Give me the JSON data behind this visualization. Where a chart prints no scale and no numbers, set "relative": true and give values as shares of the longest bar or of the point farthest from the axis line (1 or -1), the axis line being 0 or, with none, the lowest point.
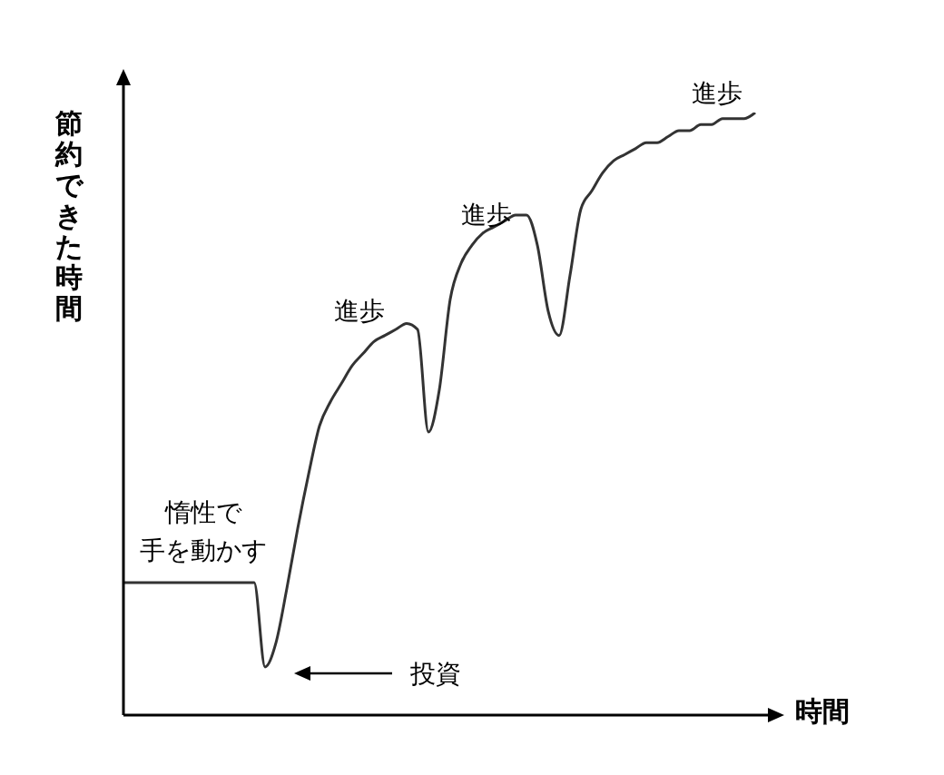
{
  "chart_data": {
    "type": "line",
    "xlabel": "時間",
    "ylabel": "節約できた時間",
    "relative": true,
    "color": "#333333",
    "categories": [
      null,
      null,
      null,
      null,
      null,
      null,
      null,
      null,
      null,
      null,
      null,
      null,
      null,
      null,
      null,
      null,
      null,
      null,
      null,
      null,
      null,
      null,
      null,
      null,
      null,
      null,
      null,
      null,
      null,
      null,
      null,
      null,
      null,
      null,
      null,
      null,
      null,
      null,
      null,
      null,
      null,
      null,
      null,
      null,
      null,
      null,
      null,
      null,
      null,
      null,
      null,
      null,
      null,
      null,
      null,
      null,
      null,
      null,
      null
    ],
    "values": [
      0.22,
      0.22,
      0.22,
      0.22,
      0.22,
      0.22,
      0.22,
      0.22,
      0.22,
      0.22,
      0.22,
      0.22,
      0.22,
      0.08,
      0.12,
      0.21,
      0.31,
      0.4,
      0.48,
      0.52,
      0.55,
      0.58,
      0.6,
      0.62,
      0.63,
      0.64,
      0.65,
      0.64,
      0.47,
      0.54,
      0.69,
      0.75,
      0.78,
      0.8,
      0.81,
      0.82,
      0.83,
      0.83,
      0.78,
      0.67,
      0.63,
      0.73,
      0.84,
      0.87,
      0.9,
      0.92,
      0.93,
      0.94,
      0.95,
      0.95,
      0.96,
      0.97,
      0.97,
      0.98,
      0.98,
      0.99,
      0.99,
      0.99,
      1
    ],
    "annotations": [
      "惰性で",
      "手を動かす",
      "投資",
      "進歩",
      "進歩",
      "進歩"
    ]
  }
}
